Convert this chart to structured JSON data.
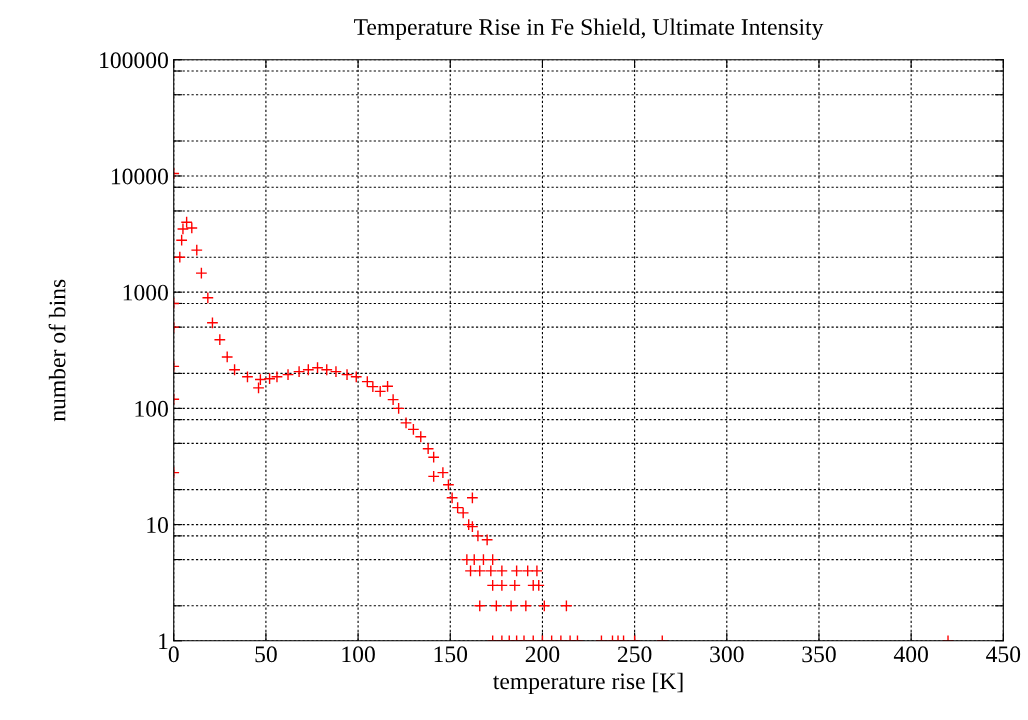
{
  "chart_data": {
    "type": "scatter",
    "title": "Temperature Rise in Fe Shield, Ultimate Intensity",
    "xlabel": "temperature rise [K]",
    "ylabel": "number of bins",
    "x": [
      0,
      0,
      0,
      0,
      0,
      0,
      3.3,
      4.3,
      5,
      7,
      9.8,
      12.5,
      15,
      18.5,
      21,
      25,
      29,
      33,
      40,
      47,
      46,
      52,
      56,
      62,
      68,
      73,
      78,
      83,
      88,
      94,
      99,
      105,
      108,
      112,
      116,
      119,
      122,
      126,
      130,
      134,
      138,
      141,
      141,
      146,
      149,
      151,
      154,
      157,
      160,
      162,
      162,
      165,
      170,
      159,
      163,
      168,
      173,
      161,
      166,
      172,
      178,
      186,
      192,
      197,
      173,
      178,
      185,
      195,
      198,
      166,
      175,
      183,
      191,
      201,
      213,
      173,
      178,
      182,
      186,
      190,
      195,
      200,
      205,
      210,
      215,
      219,
      232,
      238,
      241,
      244,
      250,
      265,
      420
    ],
    "series": [
      {
        "color": "#ff0000",
        "values": [
          28,
          120,
          230,
          500,
          800,
          10500,
          2000,
          2800,
          3500,
          4000,
          3570,
          2300,
          1460,
          895,
          545,
          390,
          277,
          215,
          187,
          177,
          150,
          180,
          187,
          195,
          207,
          215,
          224,
          215,
          207,
          195,
          187,
          170,
          154,
          140,
          155,
          119,
          100,
          75,
          66,
          57,
          45,
          38,
          26,
          28,
          22,
          17,
          14,
          12.6,
          10,
          9.6,
          17,
          8,
          7.4,
          5,
          5,
          5,
          5,
          4,
          4,
          4,
          4,
          4,
          4,
          4,
          3,
          3,
          3,
          3,
          3,
          2,
          2,
          2,
          2,
          2,
          2,
          1,
          1,
          1,
          1,
          1,
          1,
          1,
          1,
          1,
          1,
          1,
          1,
          1,
          1,
          1,
          1,
          1,
          1
        ]
      }
    ],
    "xlim": [
      0,
      450
    ],
    "xticks": [
      0,
      50,
      100,
      150,
      200,
      250,
      300,
      350,
      400,
      450
    ],
    "ylim": [
      1,
      100000
    ],
    "log": "y",
    "yticks": [
      1,
      {
        "value": 2,
        "label": null
      },
      {
        "value": 5,
        "label": null
      },
      {
        "value": 8,
        "label": null
      },
      10,
      {
        "value": 20,
        "label": null
      },
      {
        "value": 50,
        "label": null
      },
      {
        "value": 80,
        "label": null
      },
      100,
      {
        "value": 200,
        "label": null
      },
      {
        "value": 500,
        "label": null
      },
      {
        "value": 800,
        "label": null
      },
      1000,
      {
        "value": 2000,
        "label": null
      },
      {
        "value": 5000,
        "label": null
      },
      {
        "value": 8000,
        "label": null
      },
      10000,
      {
        "value": 20000,
        "label": null
      },
      {
        "value": 50000,
        "label": null
      },
      {
        "value": 80000,
        "label": null
      },
      100000
    ],
    "grid": true,
    "marker": "cross",
    "legend": false
  }
}
